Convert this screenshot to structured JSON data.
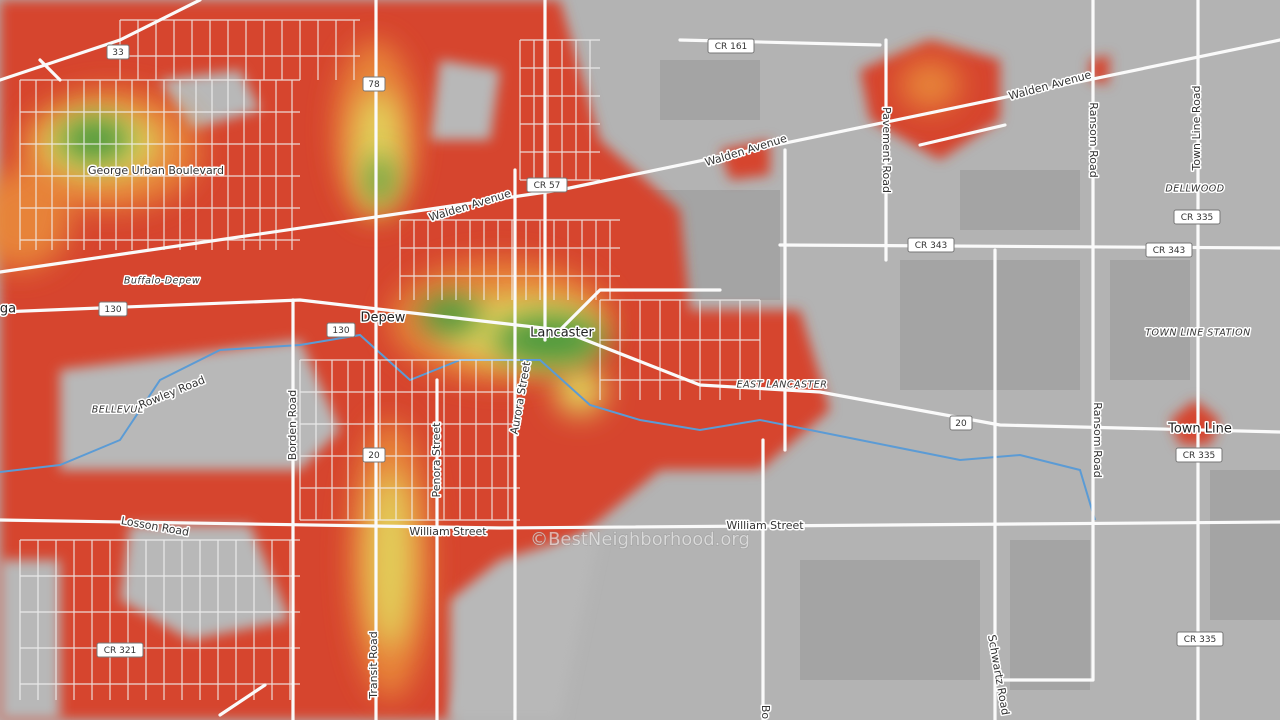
{
  "places": [
    "Depew",
    "Lancaster",
    "EAST LANCASTER",
    "BELLEVUE",
    "DELLWOOD",
    "TOWN LINE STATION",
    "Town Line",
    "Buffalo-Depew",
    "ga"
  ],
  "roads": [
    "George Urban Boulevard",
    "Walden Avenue",
    "Walden Avenue",
    "Walden Avenue",
    "Pavement Road",
    "Ransom Road",
    "Ransom Road",
    "Town Line Road",
    "Rowley Road",
    "Borden Road",
    "Penora Street",
    "Aurora Street",
    "Losson Road",
    "William Street",
    "William Street",
    "Transit Road",
    "Schwartz Road",
    "Bo"
  ],
  "shields": [
    "33",
    "CR 161",
    "78",
    "CR 57",
    "CR 335",
    "CR 343",
    "CR 343",
    "130",
    "130",
    "20",
    "20",
    "CR 335",
    "CR 335",
    "CR 321"
  ],
  "watermark": "©BestNeighborhood.org"
}
